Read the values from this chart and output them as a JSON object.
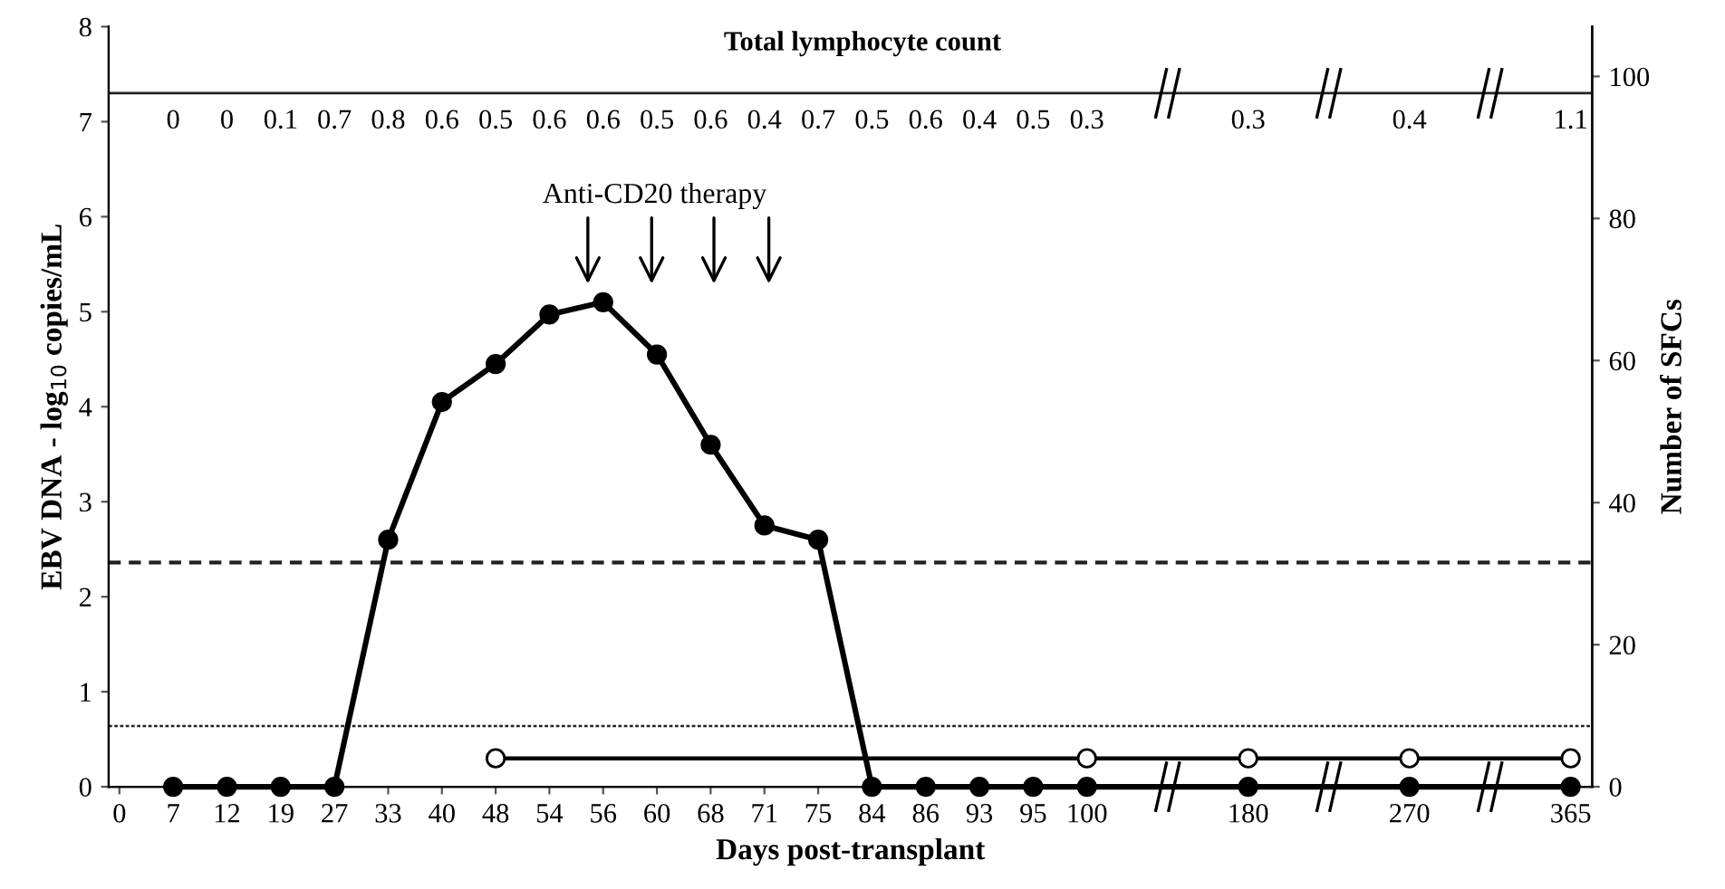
{
  "chart_data": {
    "type": "line",
    "title": "Total lymphocyte count",
    "xlabel": "Days post-transplant",
    "ylabel": "EBV DNA - log$_{10}$ copies/mL",
    "y2label": "Number of SFCs",
    "categories": [
      "0",
      "7",
      "12",
      "19",
      "27",
      "33",
      "40",
      "48",
      "54",
      "56",
      "60",
      "68",
      "71",
      "75",
      "84",
      "86",
      "93",
      "95",
      "100",
      null,
      null,
      "180",
      null,
      null,
      "270",
      null,
      null,
      "365"
    ],
    "series": [
      {
        "color": "#000000",
        "marker": "circle",
        "values": [
          null,
          0,
          0,
          0,
          0,
          2.6,
          4.05,
          4.45,
          4.97,
          5.1,
          4.55,
          3.6,
          2.75,
          2.6,
          0,
          0,
          0,
          0,
          0,
          null,
          null,
          0,
          null,
          null,
          0,
          null,
          null,
          0
        ]
      },
      {
        "color": "#000000",
        "marker": "circle_open",
        "axis": "y2",
        "values": [
          null,
          null,
          null,
          null,
          null,
          null,
          null,
          4,
          null,
          null,
          null,
          null,
          null,
          null,
          null,
          null,
          null,
          null,
          4,
          null,
          null,
          4,
          null,
          null,
          4,
          null,
          null,
          4
        ]
      }
    ],
    "ylim": [
      0,
      8
    ],
    "yticks": [
      0,
      1,
      2,
      3,
      4,
      5,
      6,
      7,
      8
    ],
    "y2lim": [
      0,
      107
    ],
    "y2ticks": [
      0,
      20,
      40,
      60,
      80,
      100
    ],
    "ref_lines": [
      {
        "axis": "y",
        "value": 2.36,
        "line_style": "dashed"
      },
      {
        "axis": "y",
        "value": 0.64,
        "line_style": "dotted"
      },
      {
        "axis": "y",
        "value": 7.3,
        "line_style": "solid"
      }
    ],
    "annotations": [
      "Anti-CD20 therapy",
      "0",
      "0",
      "0.1",
      "0.7",
      "0.8",
      "0.6",
      "0.5",
      "0.6",
      "0.6",
      "0.5",
      "0.6",
      "0.4",
      "0.7",
      "0.5",
      "0.6",
      "0.4",
      "0.5",
      "0.3",
      "0.3",
      "0.4",
      "1.1"
    ],
    "grid": false,
    "legend": false
  }
}
